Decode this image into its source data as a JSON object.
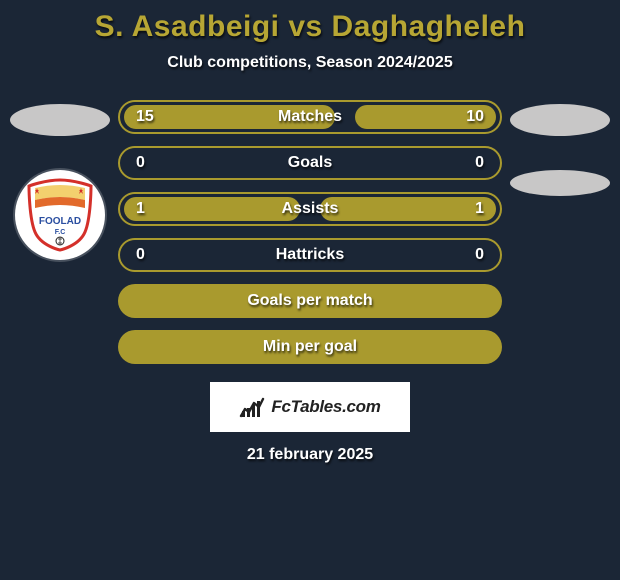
{
  "background_color": "#1b2636",
  "title": {
    "text": "S. Asadbeigi vs Daghagheleh",
    "color": "#b7a634",
    "fontsize": 30
  },
  "subtitle": {
    "text": "Club competitions, Season 2024/2025",
    "color": "#ffffff",
    "fontsize": 16
  },
  "players": {
    "left": {
      "oval_color": "#c8c7c7",
      "badge_bg": "#ffffff",
      "crest_colors": {
        "top": "#f3d06e",
        "mid": "#e26a2b",
        "ring": "#d4302a",
        "text": "#2a4ea0"
      }
    },
    "right": {
      "oval1_color": "#c8c7c7",
      "oval2_color": "#c8c7c7"
    }
  },
  "bars": {
    "track_border": "#a99a2e",
    "track_bg": "#1b2636",
    "fill_color": "#a99a2e",
    "text_color": "#ffffff",
    "stats": [
      {
        "label": "Matches",
        "left": "15",
        "right": "10",
        "left_pct": 0.6,
        "right_pct": 0.4
      },
      {
        "label": "Goals",
        "left": "0",
        "right": "0",
        "left_pct": 0.0,
        "right_pct": 0.0
      },
      {
        "label": "Assists",
        "left": "1",
        "right": "1",
        "left_pct": 0.5,
        "right_pct": 0.5
      },
      {
        "label": "Hattricks",
        "left": "0",
        "right": "0",
        "left_pct": 0.0,
        "right_pct": 0.0
      }
    ],
    "extras": [
      {
        "label": "Goals per match"
      },
      {
        "label": "Min per goal"
      }
    ]
  },
  "brand": {
    "text": "FcTables.com",
    "bg": "#ffffff",
    "color": "#222222"
  },
  "date": {
    "text": "21 february 2025",
    "color": "#ffffff"
  }
}
